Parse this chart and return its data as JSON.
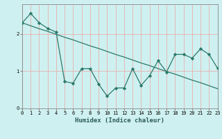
{
  "xlabel": "Humidex (Indice chaleur)",
  "background_color": "#cff0f0",
  "grid_color": "#e8b0b0",
  "line_color": "#2a7a6a",
  "x_data": [
    0,
    1,
    2,
    3,
    4,
    5,
    6,
    7,
    8,
    9,
    10,
    11,
    12,
    13,
    14,
    15,
    16,
    17,
    18,
    19,
    20,
    21,
    22,
    23
  ],
  "y_main": [
    2.3,
    2.55,
    2.3,
    2.15,
    2.05,
    0.72,
    0.68,
    1.07,
    1.07,
    0.65,
    0.33,
    0.55,
    0.55,
    1.07,
    0.62,
    0.88,
    1.28,
    0.98,
    1.45,
    1.45,
    1.35,
    1.6,
    1.45,
    1.08
  ],
  "y_trend": [
    2.3,
    2.22,
    2.14,
    2.07,
    1.99,
    1.91,
    1.84,
    1.76,
    1.68,
    1.61,
    1.53,
    1.45,
    1.38,
    1.3,
    1.22,
    1.15,
    1.07,
    0.99,
    0.92,
    0.84,
    0.76,
    0.69,
    0.61,
    0.53
  ],
  "xlim": [
    0,
    23
  ],
  "ylim": [
    0,
    2.8
  ],
  "yticks": [
    0,
    1,
    2
  ],
  "xticks": [
    0,
    1,
    2,
    3,
    4,
    5,
    6,
    7,
    8,
    9,
    10,
    11,
    12,
    13,
    14,
    15,
    16,
    17,
    18,
    19,
    20,
    21,
    22,
    23
  ],
  "tick_fontsize": 5.0,
  "xlabel_fontsize": 6.5,
  "xlabel_fontweight": "bold"
}
